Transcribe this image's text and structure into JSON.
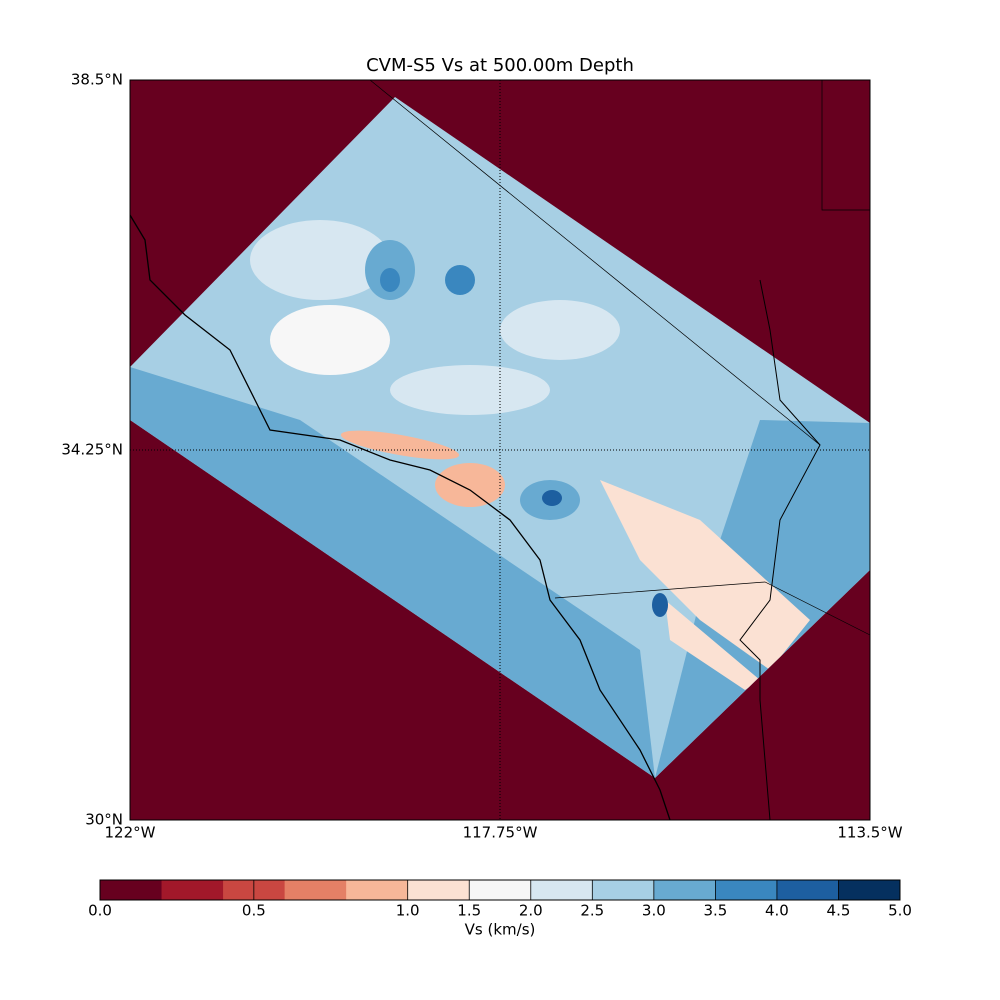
{
  "chart_data": {
    "type": "contour-map",
    "title": "CVM-S5 Vs at 500.00m Depth",
    "xlim": [
      -122,
      -113.5
    ],
    "ylim": [
      30,
      38.5
    ],
    "xticks": [
      {
        "value": -122,
        "label": "122°W"
      },
      {
        "value": -117.75,
        "label": "117.75°W"
      },
      {
        "value": -113.5,
        "label": "113.5°W"
      }
    ],
    "yticks": [
      {
        "value": 30,
        "label": "30°N"
      },
      {
        "value": 34.25,
        "label": "34.25°N"
      },
      {
        "value": 38.5,
        "label": "38.5°N"
      }
    ],
    "grid": true,
    "colorbar": {
      "label": "Vs (km/s)",
      "levels": [
        0,
        0.2,
        0.4,
        0.6,
        0.8,
        1.0,
        1.5,
        2.0,
        2.5,
        3.0,
        3.5,
        4.0,
        4.5,
        5.0
      ],
      "colors": [
        "#67001f",
        "#a2182a",
        "#c94741",
        "#e48066",
        "#f7b799",
        "#fbe1d3",
        "#f7f7f7",
        "#d7e7f1",
        "#a7cfe4",
        "#68aad1",
        "#3a87bf",
        "#1d5fa0",
        "#05305f"
      ],
      "ticks": [
        {
          "value": 0,
          "label": "0.0"
        },
        {
          "value": 0.5,
          "label": "0.5"
        },
        {
          "value": 1.0,
          "label": "1.0"
        },
        {
          "value": 1.5,
          "label": "1.5"
        },
        {
          "value": 2.0,
          "label": "2.0"
        },
        {
          "value": 2.5,
          "label": "2.5"
        },
        {
          "value": 3.0,
          "label": "3.0"
        },
        {
          "value": 3.5,
          "label": "3.5"
        },
        {
          "value": 4.0,
          "label": "4.0"
        },
        {
          "value": 4.5,
          "label": "4.5"
        },
        {
          "value": 5.0,
          "label": "5.0"
        }
      ]
    }
  }
}
